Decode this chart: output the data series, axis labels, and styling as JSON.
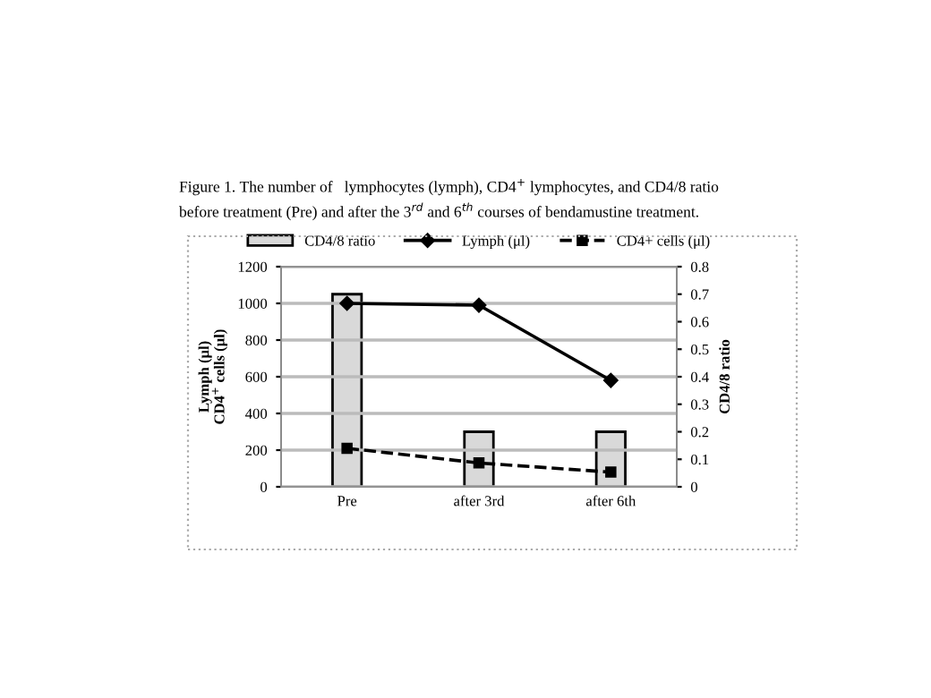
{
  "chart_data": {
    "type": "bar",
    "title": "Figure 1. The number of   lymphocytes (lymph), CD4$^{+}$ lymphocytes, and CD4/8 ratio\nbefore treatment (Pre) and after the 3$^{rd}$ and 6$^{th}$ courses of bendamustine treatment.",
    "categories": [
      "Pre",
      "after 3rd",
      "after 6th"
    ],
    "ylabel": "Lymph (μl)\nCD4$^{+}$ cells (μl)",
    "y2label": "CD4/8 ratio",
    "series": [
      {
        "name": "CD4/8 ratio",
        "axis": "y2",
        "color": "#d9d9d9",
        "values": [
          0.7,
          0.2,
          0.2
        ]
      },
      {
        "name": "Lymph (μl)",
        "type": "line",
        "color": "#000000",
        "marker": "diamond",
        "line_style": "solid",
        "values": [
          1000,
          990,
          580
        ]
      },
      {
        "name": "CD4+ cells (μl)",
        "type": "line",
        "color": "#000000",
        "marker": "square",
        "line_style": "dashed",
        "values": [
          210,
          130,
          80
        ]
      }
    ],
    "ylim": [
      0,
      1200
    ],
    "yticks": [
      0,
      200,
      400,
      600,
      800,
      1000,
      1200
    ],
    "y2lim": [
      0,
      0.8
    ],
    "y2ticks": [
      0,
      0.1,
      0.2,
      0.3,
      0.4,
      0.5,
      0.6,
      0.7,
      0.8
    ],
    "grid": "y",
    "legend": "top"
  }
}
